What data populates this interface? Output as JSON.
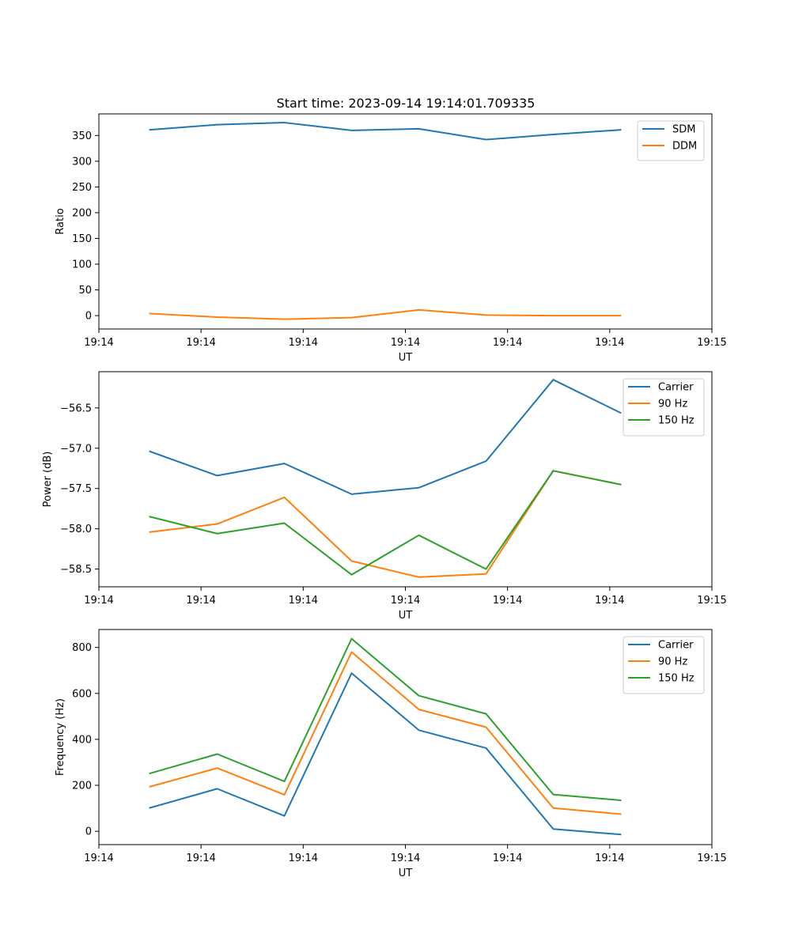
{
  "figure": {
    "title": "Start time: 2023-09-14 19:14:01.709335"
  },
  "chart_data": [
    {
      "type": "line",
      "title": "Start time: 2023-09-14 19:14:01.709335",
      "xlabel": "UT",
      "ylabel": "Ratio",
      "x": [
        0,
        1,
        2,
        3,
        4,
        5,
        6,
        7
      ],
      "xlim": [
        -0.76,
        8.36
      ],
      "x_ticks": [
        -0.76,
        0.76,
        2.28,
        3.8,
        5.32,
        6.84,
        8.36
      ],
      "x_tick_labels": [
        "19:14",
        "19:14",
        "19:14",
        "19:14",
        "19:14",
        "19:14",
        "19:15"
      ],
      "ylim": [
        -26,
        392
      ],
      "y_ticks": [
        0,
        50,
        100,
        150,
        200,
        250,
        300,
        350
      ],
      "legend_position": "top-right",
      "series": [
        {
          "name": "SDM",
          "color": "#1f77b4",
          "values": [
            361,
            371,
            375,
            360,
            363,
            342,
            352,
            361
          ]
        },
        {
          "name": "DDM",
          "color": "#ff7f0e",
          "values": [
            4,
            -3,
            -7,
            -4,
            11,
            1,
            0,
            0
          ]
        }
      ]
    },
    {
      "type": "line",
      "title": "",
      "xlabel": "UT",
      "ylabel": "Power (dB)",
      "x": [
        0,
        1,
        2,
        3,
        4,
        5,
        6,
        7
      ],
      "xlim": [
        -0.76,
        8.36
      ],
      "x_ticks": [
        -0.76,
        0.76,
        2.28,
        3.8,
        5.32,
        6.84,
        8.36
      ],
      "x_tick_labels": [
        "19:14",
        "19:14",
        "19:14",
        "19:14",
        "19:14",
        "19:14",
        "19:15"
      ],
      "ylim": [
        -58.72,
        -56.05
      ],
      "y_ticks": [
        -58.5,
        -58.0,
        -57.5,
        -57.0,
        -56.5
      ],
      "y_tick_labels": [
        "−58.5",
        "−58.0",
        "−57.5",
        "−57.0",
        "−56.5"
      ],
      "legend_position": "top-right",
      "series": [
        {
          "name": "Carrier",
          "color": "#1f77b4",
          "values": [
            -57.04,
            -57.34,
            -57.19,
            -57.57,
            -57.49,
            -57.16,
            -56.15,
            -56.56
          ]
        },
        {
          "name": "90 Hz",
          "color": "#ff7f0e",
          "values": [
            -58.04,
            -57.94,
            -57.61,
            -58.4,
            -58.6,
            -58.56,
            -57.28,
            -57.45
          ]
        },
        {
          "name": "150 Hz",
          "color": "#2ca02c",
          "values": [
            -57.85,
            -58.06,
            -57.93,
            -58.57,
            -58.08,
            -58.5,
            -57.28,
            -57.45
          ]
        }
      ]
    },
    {
      "type": "line",
      "title": "",
      "xlabel": "UT",
      "ylabel": "Frequency (Hz)",
      "x": [
        0,
        1,
        2,
        3,
        4,
        5,
        6,
        7
      ],
      "xlim": [
        -0.76,
        8.36
      ],
      "x_ticks": [
        -0.76,
        0.76,
        2.28,
        3.8,
        5.32,
        6.84,
        8.36
      ],
      "x_tick_labels": [
        "19:14",
        "19:14",
        "19:14",
        "19:14",
        "19:14",
        "19:14",
        "19:15"
      ],
      "ylim": [
        -58,
        878
      ],
      "y_ticks": [
        0,
        200,
        400,
        600,
        800
      ],
      "legend_position": "top-right",
      "series": [
        {
          "name": "Carrier",
          "color": "#1f77b4",
          "values": [
            102,
            185,
            67,
            688,
            440,
            362,
            10,
            -14
          ]
        },
        {
          "name": "90 Hz",
          "color": "#ff7f0e",
          "values": [
            194,
            275,
            159,
            780,
            530,
            453,
            101,
            75
          ]
        },
        {
          "name": "150 Hz",
          "color": "#2ca02c",
          "values": [
            252,
            336,
            217,
            838,
            590,
            511,
            160,
            135
          ]
        }
      ]
    }
  ]
}
